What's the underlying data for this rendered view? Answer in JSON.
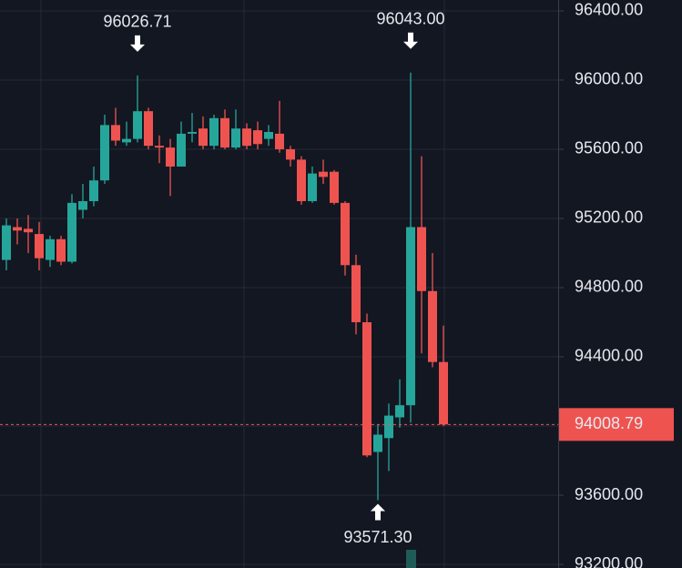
{
  "chart_data": {
    "type": "candlestick",
    "up_color": "#26a69a",
    "down_color": "#ef5350",
    "open": [
      94960,
      95150,
      95140,
      95110,
      94960,
      95080,
      94950,
      95250,
      95300,
      95420,
      95740,
      95640,
      95660,
      95820,
      95620,
      95610,
      95500,
      95690,
      95720,
      95620,
      95780,
      95610,
      95720,
      95710,
      95660,
      95690,
      95600,
      95540,
      95300,
      95470,
      95470,
      95290,
      94930,
      94600,
      93850,
      93930,
      94050,
      94120,
      95150,
      94780,
      94370
    ],
    "high": [
      95200,
      95200,
      95220,
      95180,
      95100,
      95100,
      95340,
      95400,
      95500,
      95800,
      95840,
      95760,
      96026.71,
      95840,
      95680,
      95660,
      95760,
      95810,
      95790,
      95800,
      95830,
      95830,
      95750,
      95760,
      95740,
      95880,
      95620,
      95560,
      95500,
      95540,
      95480,
      95300,
      94990,
      94650,
      94010,
      94130,
      94270,
      96043.0,
      95560,
      95000,
      94580
    ],
    "low": [
      94900,
      95050,
      95000,
      94900,
      94920,
      94930,
      94940,
      95200,
      95270,
      95400,
      95620,
      95620,
      95640,
      95600,
      95520,
      95330,
      95500,
      95640,
      95600,
      95600,
      95600,
      95600,
      95600,
      95600,
      95620,
      95580,
      95500,
      95280,
      95290,
      95400,
      95280,
      94870,
      94530,
      93820,
      93571.3,
      93740,
      93990,
      94020,
      94420,
      94340,
      94000
    ],
    "close": [
      95160,
      95130,
      95120,
      94970,
      95080,
      94950,
      95290,
      95300,
      95420,
      95740,
      95650,
      95660,
      95820,
      95620,
      95610,
      95500,
      95690,
      95700,
      95620,
      95780,
      95610,
      95720,
      95620,
      95630,
      95700,
      95600,
      95540,
      95300,
      95460,
      95440,
      95290,
      94930,
      94600,
      93830,
      93950,
      94060,
      94120,
      95150,
      94780,
      94370,
      94008.79
    ],
    "ylim": [
      93179,
      96463
    ],
    "yticks": [
      {
        "value": 96400,
        "label": "96400.00"
      },
      {
        "value": 96000,
        "label": "96000.00"
      },
      {
        "value": 95600,
        "label": "95600.00"
      },
      {
        "value": 95200,
        "label": "95200.00"
      },
      {
        "value": 94800,
        "label": "94800.00"
      },
      {
        "value": 94400,
        "label": "94400.00"
      },
      {
        "value": 94000,
        "label": "94000.00"
      },
      {
        "value": 93600,
        "label": "93600.00"
      },
      {
        "value": 93200,
        "label": "93200.00"
      }
    ],
    "grid": true,
    "annotations": [
      {
        "value": 96026.71,
        "label": "96026.71"
      },
      {
        "value": 96043.0,
        "label": "96043.00"
      },
      {
        "value": 93571.3,
        "label": "93571.30"
      }
    ],
    "last_price": {
      "value": 94008.79,
      "label": "94008.79"
    }
  }
}
